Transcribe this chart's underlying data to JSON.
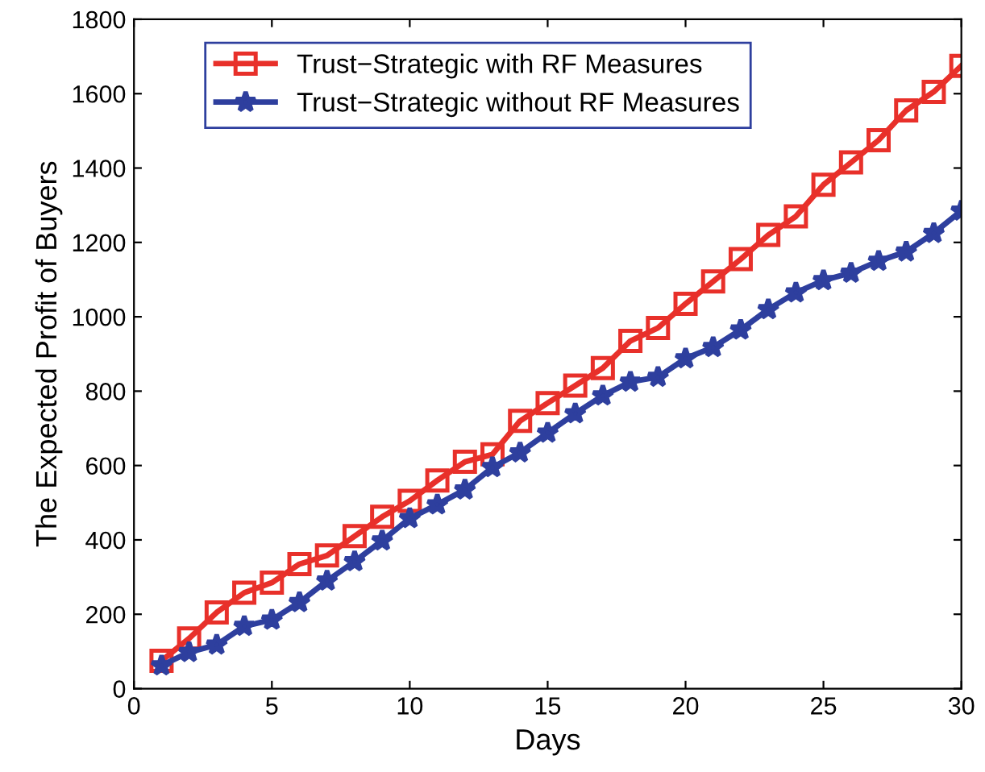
{
  "chart_data": {
    "type": "line",
    "xlabel": "Days",
    "ylabel": "The Expected Profit of Buyers",
    "x": [
      1,
      2,
      3,
      4,
      5,
      6,
      7,
      8,
      9,
      10,
      11,
      12,
      13,
      14,
      15,
      16,
      17,
      18,
      19,
      20,
      21,
      22,
      23,
      24,
      25,
      26,
      27,
      28,
      29,
      30
    ],
    "series": [
      {
        "name": "Trust−Strategic with RF Measures",
        "color": "#e8302a",
        "marker": "square",
        "values": [
          75,
          135,
          205,
          258,
          285,
          335,
          358,
          410,
          462,
          505,
          560,
          610,
          630,
          720,
          768,
          815,
          862,
          935,
          970,
          1035,
          1095,
          1155,
          1220,
          1270,
          1355,
          1415,
          1475,
          1555,
          1605,
          1675
        ]
      },
      {
        "name": "Trust−Strategic without RF Measures",
        "color": "#2e3f9e",
        "marker": "star",
        "values": [
          62,
          98,
          118,
          168,
          185,
          232,
          290,
          342,
          398,
          458,
          495,
          535,
          595,
          635,
          688,
          740,
          788,
          825,
          838,
          888,
          918,
          965,
          1020,
          1065,
          1098,
          1118,
          1150,
          1175,
          1225,
          1285
        ]
      }
    ],
    "xlim": [
      0,
      30
    ],
    "xticks": [
      0,
      5,
      10,
      15,
      20,
      25,
      30
    ],
    "ylim": [
      0,
      1800
    ],
    "yticks": [
      0,
      200,
      400,
      600,
      800,
      1000,
      1200,
      1400,
      1600,
      1800
    ],
    "grid": false,
    "legend": "top left",
    "line_style": "solid"
  }
}
